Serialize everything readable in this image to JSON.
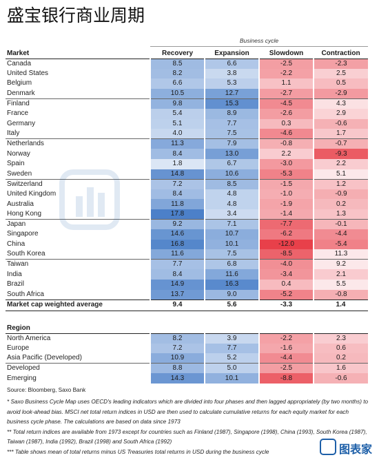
{
  "title": "盛宝银行商业周期",
  "business_cycle_label": "Business cycle",
  "columns": [
    "Market",
    "Recovery",
    "Expansion",
    "Slowdown",
    "Contraction"
  ],
  "colors": {
    "blue": "#4a7fc8",
    "red": "#e8404a",
    "watermark": "#1d5fa8"
  },
  "markets": [
    {
      "name": "Canada",
      "v": [
        "8.5",
        "6.6",
        "-2.5",
        "-2.3"
      ],
      "group_start": true
    },
    {
      "name": "United States",
      "v": [
        "8.2",
        "3.8",
        "-2.2",
        "2.5"
      ]
    },
    {
      "name": "Belgium",
      "v": [
        "6.6",
        "5.3",
        "1.1",
        "0.5"
      ]
    },
    {
      "name": "Denmark",
      "v": [
        "10.5",
        "12.7",
        "-2.7",
        "-2.9"
      ]
    },
    {
      "name": "Finland",
      "v": [
        "9.8",
        "15.3",
        "-4.5",
        "4.3"
      ],
      "group_start": true
    },
    {
      "name": "France",
      "v": [
        "5.4",
        "8.9",
        "-2.6",
        "2.9"
      ]
    },
    {
      "name": "Germany",
      "v": [
        "5.1",
        "7.7",
        "0.3",
        "-0.6"
      ]
    },
    {
      "name": "Italy",
      "v": [
        "4.0",
        "7.5",
        "-4.6",
        "1.7"
      ]
    },
    {
      "name": "Netherlands",
      "v": [
        "11.3",
        "7.9",
        "-0.8",
        "-0.7"
      ],
      "group_start": true
    },
    {
      "name": "Norway",
      "v": [
        "8.4",
        "13.0",
        "2.2",
        "-9.3"
      ]
    },
    {
      "name": "Spain",
      "v": [
        "1.8",
        "6.7",
        "-3.0",
        "2.2"
      ]
    },
    {
      "name": "Sweden",
      "v": [
        "14.8",
        "10.6",
        "-5.3",
        "5.1"
      ]
    },
    {
      "name": "Switzerland",
      "v": [
        "7.2",
        "8.5",
        "-1.5",
        "1.2"
      ],
      "group_start": true
    },
    {
      "name": "United Kingdom",
      "v": [
        "8.4",
        "4.8",
        "-1.0",
        "-0.9"
      ]
    },
    {
      "name": "Australia",
      "v": [
        "11.8",
        "4.8",
        "-1.9",
        "0.2"
      ]
    },
    {
      "name": "Hong Kong",
      "v": [
        "17.8",
        "3.4",
        "-1.4",
        "1.3"
      ]
    },
    {
      "name": "Japan",
      "v": [
        "9.2",
        "7.1",
        "-7.7",
        "-0.1"
      ],
      "group_start": true
    },
    {
      "name": "Singapore",
      "v": [
        "14.6",
        "10.7",
        "-6.2",
        "-4.4"
      ]
    },
    {
      "name": "China",
      "v": [
        "16.8",
        "10.1",
        "-12.0",
        "-5.4"
      ]
    },
    {
      "name": "South Korea",
      "v": [
        "11.6",
        "7.5",
        "-8.5",
        "11.3"
      ]
    },
    {
      "name": "Taiwan",
      "v": [
        "7.7",
        "6.8",
        "-4.0",
        "9.2"
      ],
      "group_start": true
    },
    {
      "name": "India",
      "v": [
        "8.4",
        "11.6",
        "-3.4",
        "2.1"
      ]
    },
    {
      "name": "Brazil",
      "v": [
        "14.9",
        "16.3",
        "0.4",
        "5.5"
      ]
    },
    {
      "name": "South Africa",
      "v": [
        "13.7",
        "9.0",
        "-5.2",
        "-0.8"
      ]
    }
  ],
  "average": {
    "name": "Market cap weighted average",
    "v": [
      "9.4",
      "5.6",
      "-3.3",
      "1.4"
    ]
  },
  "region_header": "Region",
  "regions": [
    {
      "name": "North America",
      "v": [
        "8.2",
        "3.9",
        "-2.2",
        "2.3"
      ]
    },
    {
      "name": "Europe",
      "v": [
        "7.2",
        "7.7",
        "-1.6",
        "0.6"
      ]
    },
    {
      "name": "Asia Pacific (Developed)",
      "v": [
        "10.9",
        "5.2",
        "-4.4",
        "0.2"
      ]
    },
    {
      "name": "Developed",
      "v": [
        "8.8",
        "5.0",
        "-2.5",
        "1.6"
      ],
      "group_start": true
    },
    {
      "name": "Emerging",
      "v": [
        "14.3",
        "10.1",
        "-8.8",
        "-0.6"
      ]
    }
  ],
  "source": "Source: Bloomberg, Saxo Bank",
  "notes": [
    "* Saxo Business Cycle Map uses OECD's leading indicators which are divided into four phases and then lagged appropriately (by two months) to avoid look-ahead bias. MSCI net total return indices in USD are then used to calculate cumulative returns for each equity market for each business cycle phase. The calculations are based on data since 1973",
    "** Total return indices are available from 1973 except for countries such as Finland (1987), Singapore (1998), China (1993), South Korea (1987), Taiwan (1987), India (1992), Brazil (1998) and South Africa (1992)",
    "*** Table shows mean of total returns minus US Treasuries total returns in USD during the business cycle"
  ],
  "logo": {
    "text": "图表家",
    "icon": "chart-logo-icon"
  },
  "watermark": {
    "text": "图表家",
    "icon": "watermark-icon"
  }
}
